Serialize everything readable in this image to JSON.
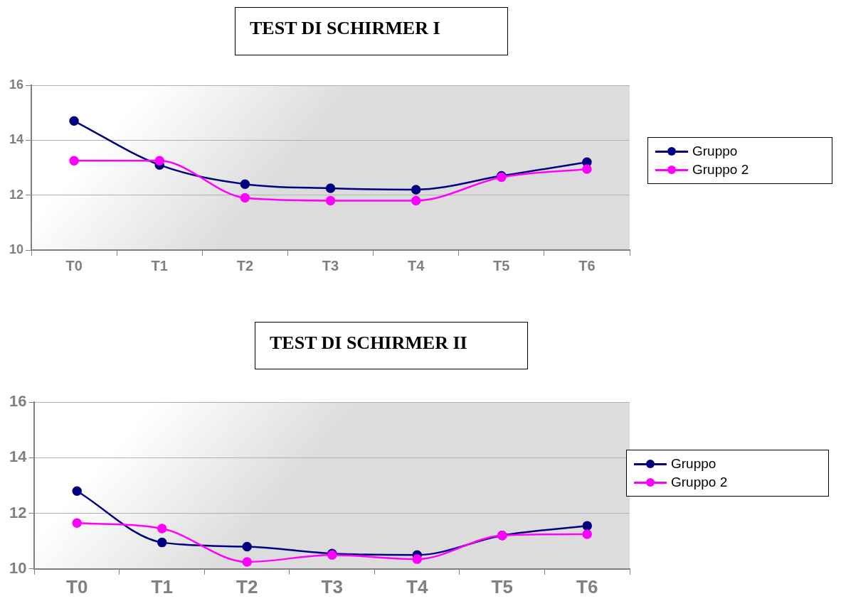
{
  "chart_data": [
    {
      "type": "line",
      "title": "TEST DI SCHIRMER I",
      "categories": [
        "T0",
        "T1",
        "T2",
        "T3",
        "T4",
        "T5",
        "T6"
      ],
      "series": [
        {
          "name": "Gruppo",
          "color": "#000080",
          "values": [
            14.7,
            13.1,
            12.4,
            12.25,
            12.2,
            12.7,
            13.2
          ]
        },
        {
          "name": "Gruppo 2",
          "color": "#ff00ff",
          "values": [
            13.25,
            13.25,
            11.9,
            11.8,
            11.8,
            12.65,
            12.95
          ]
        }
      ],
      "ylim": [
        10,
        16
      ],
      "yticks": [
        10,
        12,
        14,
        16
      ],
      "grid": "y",
      "legend": "right",
      "marker": "circle",
      "line_style": "solid"
    },
    {
      "type": "line",
      "title": "TEST DI SCHIRMER II",
      "categories": [
        "T0",
        "T1",
        "T2",
        "T3",
        "T4",
        "T5",
        "T6"
      ],
      "series": [
        {
          "name": "Gruppo",
          "color": "#000080",
          "values": [
            12.8,
            10.95,
            10.8,
            10.55,
            10.5,
            11.2,
            11.55
          ]
        },
        {
          "name": "Gruppo 2",
          "color": "#ff00ff",
          "values": [
            11.65,
            11.45,
            10.25,
            10.5,
            10.35,
            11.2,
            11.25
          ]
        }
      ],
      "ylim": [
        10,
        16
      ],
      "yticks": [
        10,
        12,
        14,
        16
      ],
      "grid": "y",
      "legend": "right",
      "marker": "circle",
      "line_style": "solid"
    }
  ]
}
